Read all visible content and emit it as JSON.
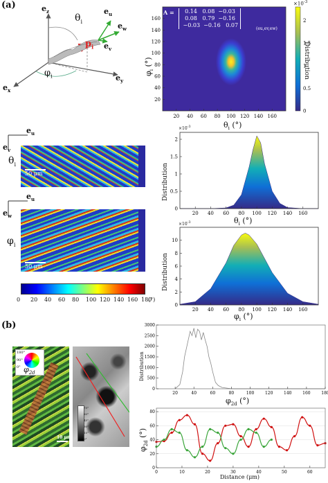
{
  "panel_labels": {
    "a": "(a)",
    "b": "(b)"
  },
  "schematic": {
    "axes": {
      "ez": "e",
      "ez_sub": "z",
      "ex": "e",
      "ex_sub": "x",
      "ey": "e",
      "ey_sub": "y"
    },
    "basis": {
      "eu": "e",
      "eu_sub": "u",
      "ew": "e",
      "ew_sub": "w",
      "ev": "e",
      "ev_sub": "v"
    },
    "theta": "θ",
    "theta_sub": "i",
    "phi": "φ",
    "phi_sub": "i",
    "p": "p",
    "p_sub": "i"
  },
  "heatmap": {
    "matrix_label": "A =",
    "matrix": [
      [
        "0.14",
        "0.08",
        "−0.03"
      ],
      [
        "0.08",
        "0.79",
        "−0.16"
      ],
      [
        "−0.03",
        "−0.16",
        "0.07"
      ]
    ],
    "matrix_sub": "(e",
    "matrix_sub_full": "(eu,ev,ew)",
    "colorbar_exp": "×10",
    "colorbar_exp_pow": "-3",
    "colorbar_ticks": [
      "0",
      "0.5",
      "1",
      "1.5",
      "2"
    ],
    "colorbar_label": "Distribution",
    "x_ticks": [
      "20",
      "40",
      "60",
      "80",
      "100",
      "120",
      "140",
      "160"
    ],
    "y_ticks": [
      "20",
      "40",
      "60",
      "80",
      "100",
      "120",
      "140",
      "160"
    ],
    "xlabel": "θ",
    "xlabel_sub": "i",
    "xlabel_unit": "(°)",
    "ylabel": "φ",
    "ylabel_sub": "i",
    "ylabel_unit": "(°)"
  },
  "maps": {
    "theta_map": {
      "axis_top": "e",
      "axis_top_sub": "u",
      "axis_side": "e",
      "axis_side_sub": "v",
      "symbol": "θ",
      "symbol_sub": "i",
      "scale": "50 μm"
    },
    "phi_map": {
      "axis_top": "e",
      "axis_top_sub": "u",
      "axis_side": "e",
      "axis_side_sub": "w",
      "symbol": "φ",
      "symbol_sub": "i",
      "scale": "50 μm"
    },
    "colorbar_ticks": [
      "0",
      "20",
      "40",
      "60",
      "80",
      "100",
      "120",
      "140",
      "160",
      "180"
    ],
    "colorbar_unit": "(°)"
  },
  "theta_dist": {
    "ylabel": "Distribution",
    "exp": "×10",
    "exp_pow": "-3",
    "y_ticks": [
      "0",
      "0.5",
      "1",
      "1.5",
      "2"
    ],
    "x_ticks": [
      "20",
      "40",
      "60",
      "80",
      "100",
      "120",
      "140",
      "160"
    ],
    "xlabel": "θ",
    "xlabel_sub": "i",
    "xlabel_unit": "(°)"
  },
  "phi_dist": {
    "ylabel": "Distribution",
    "exp": "×10",
    "exp_pow": "-3",
    "y_ticks": [
      "0",
      "2",
      "4",
      "6",
      "8",
      "10"
    ],
    "x_ticks": [
      "20",
      "40",
      "60",
      "80",
      "100",
      "120",
      "140",
      "160"
    ],
    "xlabel": "φ",
    "xlabel_sub": "i",
    "xlabel_unit": "(°)"
  },
  "b_images": {
    "wheel_labels": [
      "180°",
      "90°",
      "0°"
    ],
    "wheel_symbol": "φ",
    "wheel_symbol_sub": "2d",
    "scale": "10 μm",
    "gray_scale_ticks": [
      "75°",
      "60°",
      "45°",
      "30°",
      "15°",
      "0°"
    ]
  },
  "phi2d_hist": {
    "ylabel": "Distribution",
    "y_ticks": [
      "0",
      "500",
      "1000",
      "1500",
      "2000",
      "2500",
      "3000"
    ],
    "x_ticks": [
      "20",
      "40",
      "60",
      "80",
      "100",
      "120",
      "140",
      "160",
      "180"
    ],
    "xlabel": "φ",
    "xlabel_sub": "2d",
    "xlabel_unit": "(°)"
  },
  "profile": {
    "ylabel": "φ",
    "ylabel_sub": "2d",
    "ylabel_unit": "(°)",
    "y_ticks": [
      "0",
      "20",
      "40",
      "60",
      "80"
    ],
    "x_ticks": [
      "0",
      "10",
      "20",
      "30",
      "40",
      "50",
      "60"
    ],
    "xlabel": "Distance (μm)"
  },
  "chart_data": [
    {
      "type": "heatmap",
      "title": "",
      "xlabel": "θi (°)",
      "ylabel": "φi (°)",
      "xlim": [
        0,
        180
      ],
      "ylim": [
        0,
        180
      ],
      "colorbar_range": [
        0,
        0.0023
      ],
      "peak": {
        "x": 100,
        "y": 85
      }
    },
    {
      "type": "area",
      "title": "",
      "xlabel": "θi (°)",
      "ylabel": "Distribution",
      "xlim": [
        0,
        180
      ],
      "ylim": [
        0,
        0.0022
      ],
      "x": [
        40,
        60,
        70,
        80,
        90,
        95,
        100,
        105,
        110,
        120,
        130,
        140,
        160
      ],
      "y": [
        0,
        2e-05,
        0.0001,
        0.0004,
        0.0012,
        0.0017,
        0.0021,
        0.0019,
        0.0013,
        0.0005,
        0.00015,
        3e-05,
        0
      ]
    },
    {
      "type": "area",
      "title": "",
      "xlabel": "φi (°)",
      "ylabel": "Distribution",
      "xlim": [
        0,
        180
      ],
      "ylim": [
        0,
        0.012
      ],
      "x": [
        0,
        20,
        40,
        60,
        70,
        80,
        85,
        90,
        100,
        110,
        120,
        140,
        160,
        180
      ],
      "y": [
        0.0001,
        0.0005,
        0.0025,
        0.0065,
        0.0092,
        0.0108,
        0.0111,
        0.0108,
        0.0094,
        0.0072,
        0.005,
        0.0018,
        0.0005,
        0.0001
      ]
    },
    {
      "type": "line",
      "title": "",
      "xlabel": "φ2d (°)",
      "ylabel": "Distribution",
      "xlim": [
        0,
        180
      ],
      "ylim": [
        0,
        3000
      ],
      "x": [
        20,
        25,
        28,
        30,
        33,
        36,
        38,
        40,
        42,
        44,
        46,
        48,
        50,
        52,
        54,
        56,
        58,
        60,
        63,
        66,
        70,
        80
      ],
      "y": [
        0,
        200,
        800,
        1500,
        2100,
        2700,
        2500,
        2850,
        2400,
        2800,
        2700,
        2300,
        2650,
        2300,
        2000,
        1500,
        1200,
        800,
        300,
        150,
        60,
        0
      ]
    },
    {
      "type": "line",
      "title": "",
      "xlabel": "Distance (μm)",
      "ylabel": "φ2d (°)",
      "xlim": [
        0,
        66
      ],
      "ylim": [
        0,
        85
      ],
      "series": [
        {
          "x": [
            0,
            3,
            6,
            9,
            12,
            15,
            18,
            21,
            24,
            27,
            30,
            33,
            36,
            39,
            42,
            45,
            48,
            51,
            54,
            57,
            60,
            63,
            66
          ],
          "y": [
            37,
            38,
            50,
            68,
            75,
            62,
            20,
            10,
            35,
            60,
            62,
            45,
            30,
            55,
            70,
            58,
            30,
            25,
            45,
            72,
            60,
            32,
            35
          ]
        },
        {
          "x": [
            0,
            3,
            6,
            9,
            12,
            15,
            18,
            21,
            24,
            27,
            30,
            33,
            36,
            39,
            42,
            45
          ],
          "y": [
            30,
            40,
            55,
            50,
            25,
            15,
            30,
            55,
            50,
            28,
            20,
            40,
            55,
            50,
            30,
            40
          ]
        }
      ]
    }
  ]
}
